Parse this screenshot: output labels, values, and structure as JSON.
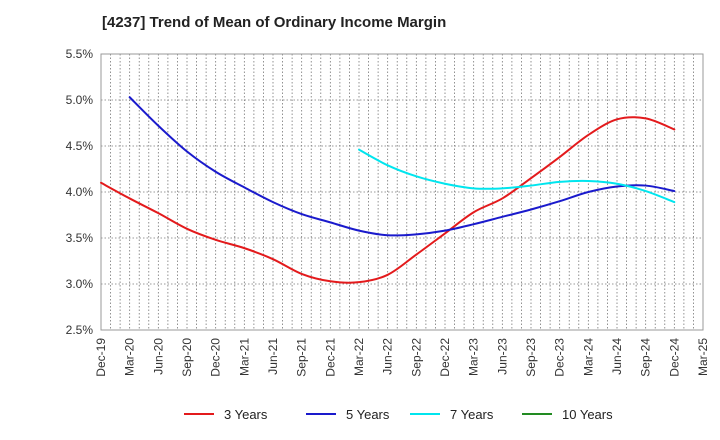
{
  "chart_data": {
    "type": "line",
    "title": "[4237]  Trend of Mean of Ordinary Income Margin",
    "xlabel": "",
    "ylabel": "",
    "ylim": [
      2.5,
      5.5
    ],
    "y_ticks": [
      "2.5%",
      "3.0%",
      "3.5%",
      "4.0%",
      "4.5%",
      "5.0%",
      "5.5%"
    ],
    "y_tick_values": [
      2.5,
      3.0,
      3.5,
      4.0,
      4.5,
      5.0,
      5.5
    ],
    "x_categories": [
      "Dec-19",
      "Mar-20",
      "Jun-20",
      "Sep-20",
      "Dec-20",
      "Mar-21",
      "Jun-21",
      "Sep-21",
      "Dec-21",
      "Mar-22",
      "Jun-22",
      "Sep-22",
      "Dec-22",
      "Mar-23",
      "Jun-23",
      "Sep-23",
      "Dec-23",
      "Mar-24",
      "Jun-24",
      "Sep-24",
      "Dec-24",
      "Mar-25"
    ],
    "grid": true,
    "legend_position": "bottom",
    "series": [
      {
        "name": "3 Years",
        "color": "#e31a1c",
        "points": [
          [
            0,
            4.1
          ],
          [
            1,
            3.93
          ],
          [
            2,
            3.77
          ],
          [
            3,
            3.6
          ],
          [
            4,
            3.48
          ],
          [
            5,
            3.39
          ],
          [
            6,
            3.27
          ],
          [
            7,
            3.11
          ],
          [
            8,
            3.03
          ],
          [
            9,
            3.02
          ],
          [
            10,
            3.1
          ],
          [
            11,
            3.32
          ],
          [
            12,
            3.55
          ],
          [
            13,
            3.78
          ],
          [
            14,
            3.93
          ],
          [
            15,
            4.15
          ],
          [
            16,
            4.38
          ],
          [
            17,
            4.62
          ],
          [
            18,
            4.79
          ],
          [
            19,
            4.8
          ],
          [
            20,
            4.68
          ]
        ]
      },
      {
        "name": "5 Years",
        "color": "#1a1acc",
        "points": [
          [
            1,
            5.03
          ],
          [
            2,
            4.72
          ],
          [
            3,
            4.44
          ],
          [
            4,
            4.22
          ],
          [
            5,
            4.05
          ],
          [
            6,
            3.89
          ],
          [
            7,
            3.76
          ],
          [
            8,
            3.67
          ],
          [
            9,
            3.58
          ],
          [
            10,
            3.53
          ],
          [
            11,
            3.54
          ],
          [
            12,
            3.58
          ],
          [
            13,
            3.65
          ],
          [
            14,
            3.73
          ],
          [
            15,
            3.81
          ],
          [
            16,
            3.9
          ],
          [
            17,
            4.0
          ],
          [
            18,
            4.06
          ],
          [
            19,
            4.07
          ],
          [
            20,
            4.01
          ]
        ]
      },
      {
        "name": "7 Years",
        "color": "#00e5ee",
        "points": [
          [
            9,
            4.46
          ],
          [
            10,
            4.29
          ],
          [
            11,
            4.17
          ],
          [
            12,
            4.09
          ],
          [
            13,
            4.04
          ],
          [
            14,
            4.04
          ],
          [
            15,
            4.07
          ],
          [
            16,
            4.11
          ],
          [
            17,
            4.12
          ],
          [
            18,
            4.09
          ],
          [
            19,
            4.01
          ],
          [
            20,
            3.89
          ]
        ]
      },
      {
        "name": "10 Years",
        "color": "#228b22",
        "points": []
      }
    ]
  }
}
